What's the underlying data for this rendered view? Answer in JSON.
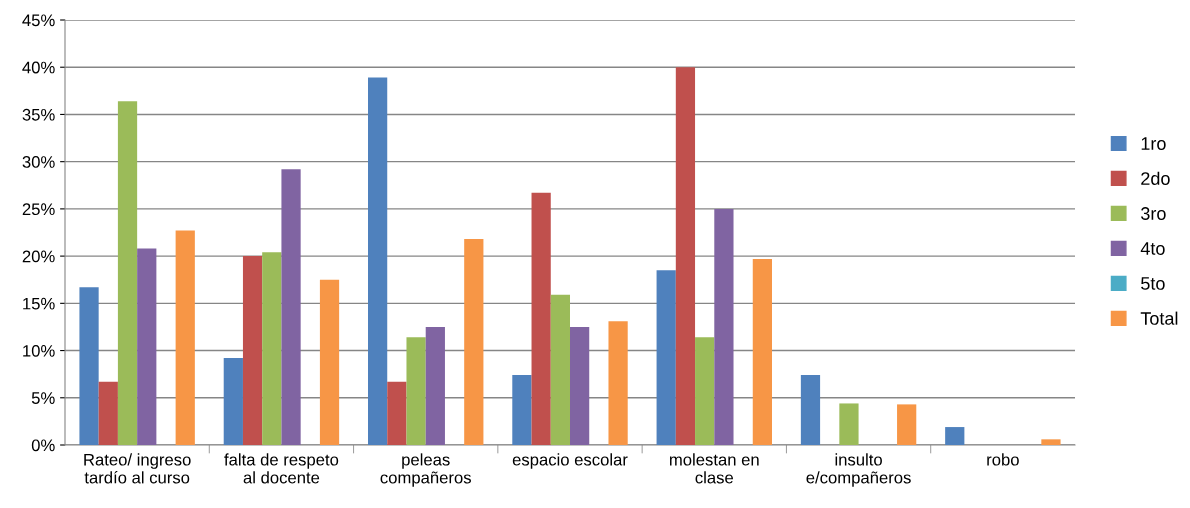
{
  "chart_data": {
    "type": "bar",
    "categories": [
      "Rateo/ ingreso\ntardío al curso",
      "falta de respeto\nal docente",
      "peleas\ncompañeros",
      "espacio escolar",
      "molestan en\nclase",
      "insulto\ne/compañeros",
      "robo"
    ],
    "series": [
      {
        "name": "1ro",
        "color": "#4f81bd",
        "values": [
          16.7,
          9.2,
          38.9,
          7.4,
          18.5,
          7.4,
          1.9
        ]
      },
      {
        "name": "2do",
        "color": "#c0504d",
        "values": [
          6.7,
          20.0,
          6.7,
          26.7,
          40.0,
          0,
          0
        ]
      },
      {
        "name": "3ro",
        "color": "#9bbb59",
        "values": [
          36.4,
          20.4,
          11.4,
          15.9,
          11.4,
          4.4,
          0
        ]
      },
      {
        "name": "4to",
        "color": "#8064a2",
        "values": [
          20.8,
          29.2,
          12.5,
          12.5,
          25.0,
          0,
          0
        ]
      },
      {
        "name": "5to",
        "color": "#4bacc6",
        "values": [
          0,
          0,
          0,
          0,
          0,
          0,
          0
        ]
      },
      {
        "name": "Total",
        "color": "#f79646",
        "values": [
          22.7,
          17.5,
          21.8,
          13.1,
          19.7,
          4.3,
          0.6
        ]
      }
    ],
    "ylim": [
      0,
      45
    ],
    "yticks": [
      {
        "value": 0,
        "label": "0%"
      },
      {
        "value": 5,
        "label": "5%"
      },
      {
        "value": 10,
        "label": "10%"
      },
      {
        "value": 15,
        "label": "15%"
      },
      {
        "value": 20,
        "label": "20%"
      },
      {
        "value": 25,
        "label": "25%"
      },
      {
        "value": 30,
        "label": "30%"
      },
      {
        "value": 35,
        "label": "35%"
      },
      {
        "value": 40,
        "label": "40%"
      },
      {
        "value": 45,
        "label": "45%"
      }
    ],
    "grid": "y",
    "legend": "right"
  }
}
